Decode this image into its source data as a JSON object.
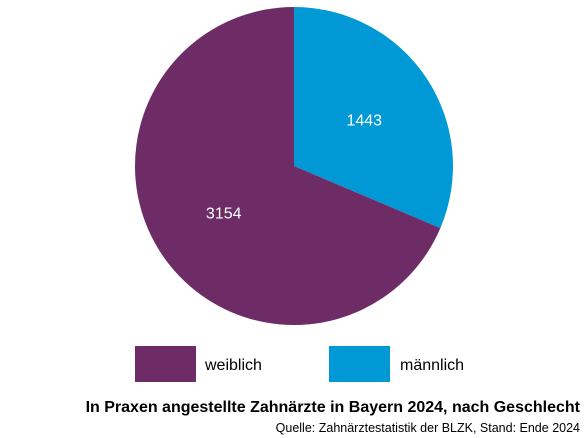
{
  "chart_data": {
    "type": "pie",
    "title": "In Praxen angestellte Zahnärzte in Bayern 2024, nach Geschlecht",
    "source": "Quelle: Zahnärztestatistik der BLZK, Stand: Ende 2024",
    "legend_position": "bottom",
    "slices": [
      {
        "label": "männlich",
        "value": 1443,
        "color": "#0099d5"
      },
      {
        "label": "weiblich",
        "value": 3154,
        "color": "#6e2c67"
      }
    ],
    "legend_order": [
      "weiblich",
      "männlich"
    ]
  }
}
